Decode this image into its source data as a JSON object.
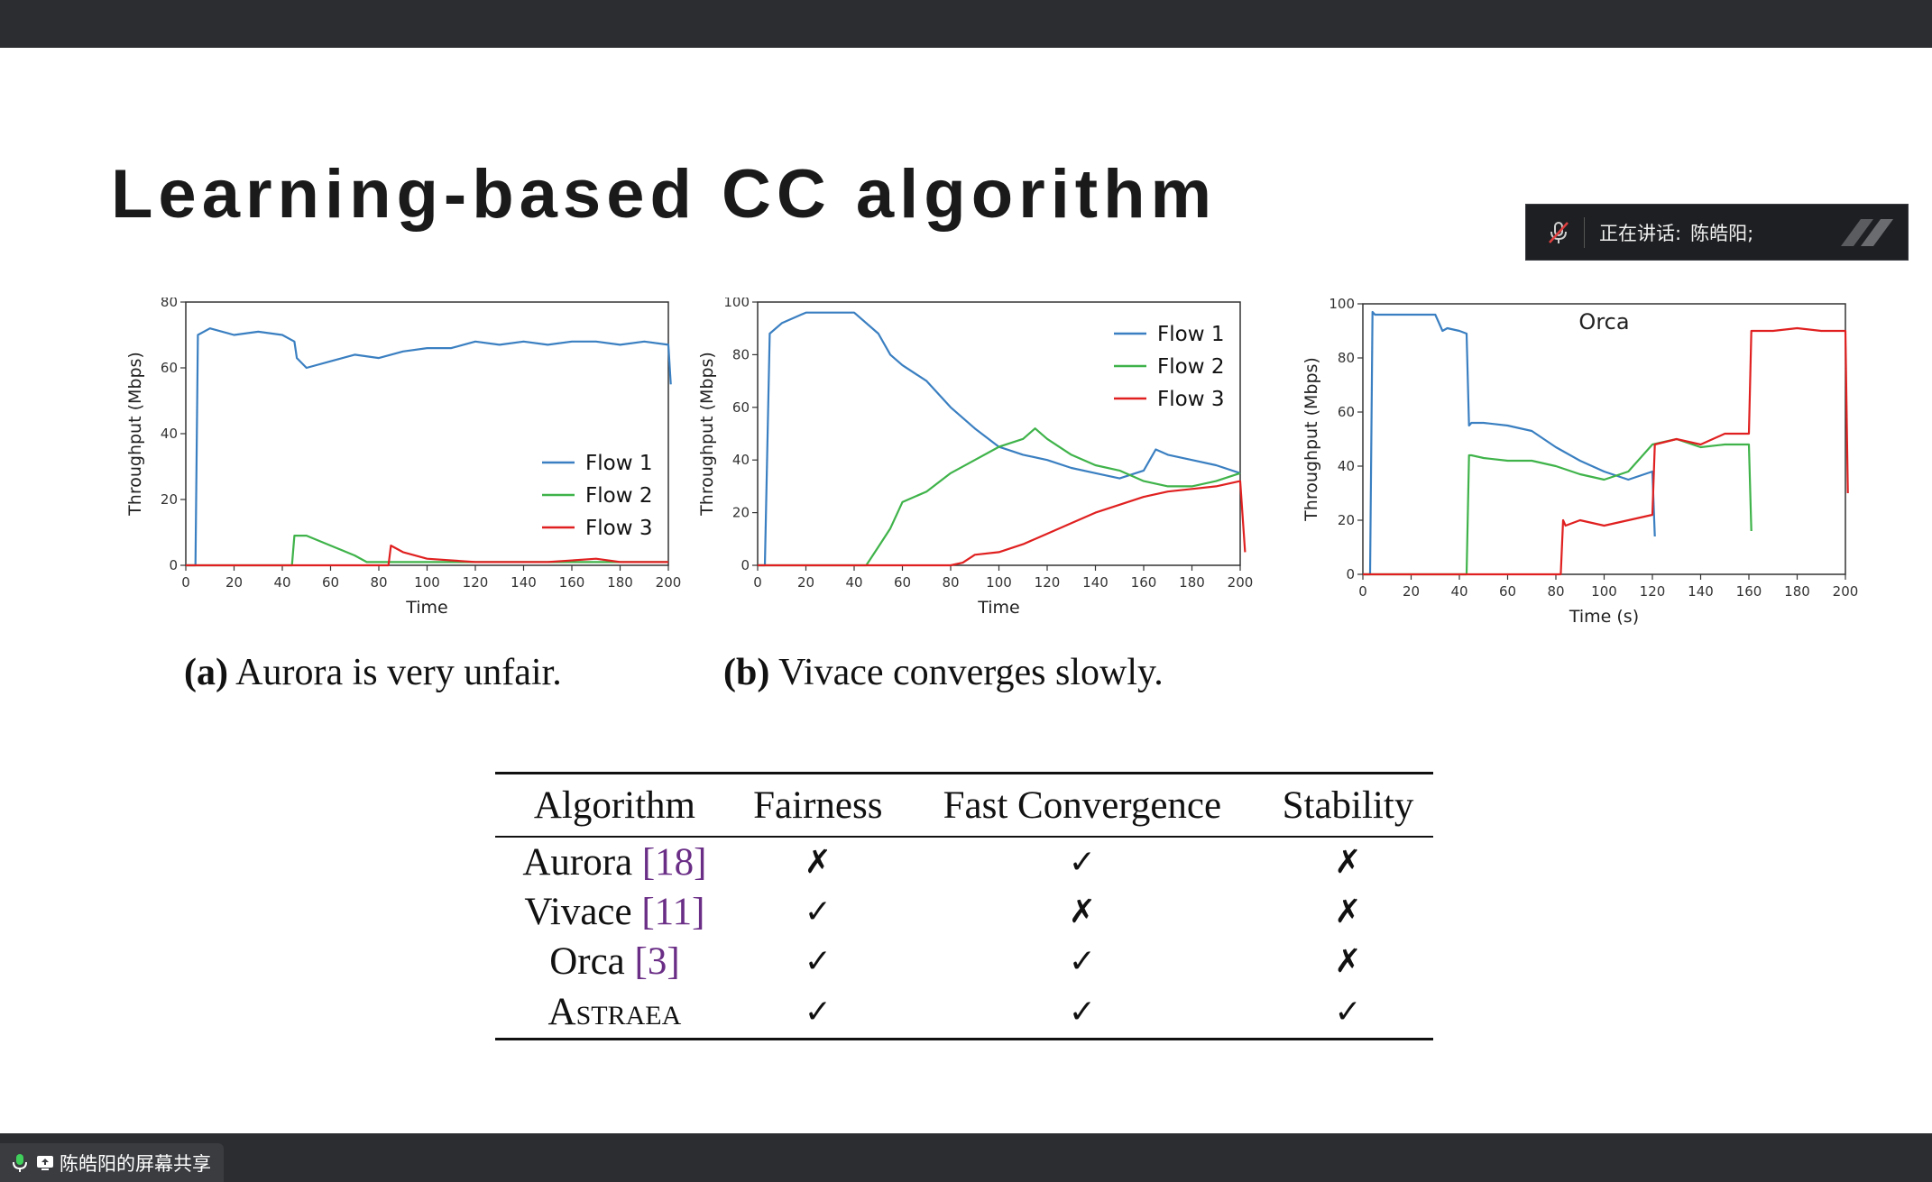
{
  "slide": {
    "title": "Learning-based CC algorithm"
  },
  "speaker_panel": {
    "label": "正在讲话:",
    "name": "陈皓阳;"
  },
  "share_bar": {
    "text": "陈皓阳的屏幕共享"
  },
  "captions": {
    "a_prefix": "(a)",
    "a_text": " Aurora is very unfair.",
    "b_prefix": "(b)",
    "b_text": " Vivace converges slowly."
  },
  "colors": {
    "flow1": "#3a7fc1",
    "flow2": "#3fb34a",
    "flow3": "#e02020"
  },
  "chart_data": [
    {
      "type": "line",
      "title": "",
      "xlabel": "Time",
      "ylabel": "Throughput (Mbps)",
      "xlim": [
        0,
        200
      ],
      "ylim": [
        0,
        80
      ],
      "xticks": [
        "0",
        "20",
        "40",
        "60",
        "80",
        "100",
        "120",
        "140",
        "160",
        "180",
        "200"
      ],
      "yticks": [
        "0",
        "20",
        "40",
        "60",
        "80"
      ],
      "legend": "lower-right",
      "series": [
        {
          "name": "Flow 1",
          "x": [
            0,
            4,
            5,
            10,
            20,
            30,
            40,
            45,
            46,
            50,
            60,
            70,
            80,
            90,
            100,
            110,
            120,
            130,
            140,
            150,
            160,
            170,
            180,
            190,
            200,
            201
          ],
          "y": [
            0,
            0,
            70,
            72,
            70,
            71,
            70,
            68,
            63,
            60,
            62,
            64,
            63,
            65,
            66,
            66,
            68,
            67,
            68,
            67,
            68,
            68,
            67,
            68,
            67,
            55
          ]
        },
        {
          "name": "Flow 2",
          "x": [
            0,
            44,
            45,
            50,
            60,
            70,
            75,
            80,
            100,
            150,
            200
          ],
          "y": [
            0,
            0,
            9,
            9,
            6,
            3,
            1,
            1,
            1,
            1,
            1
          ]
        },
        {
          "name": "Flow 3",
          "x": [
            0,
            84,
            85,
            90,
            100,
            120,
            150,
            170,
            180,
            200
          ],
          "y": [
            0,
            0,
            6,
            4,
            2,
            1,
            1,
            2,
            1,
            1
          ]
        }
      ]
    },
    {
      "type": "line",
      "title": "",
      "xlabel": "Time",
      "ylabel": "Throughput (Mbps)",
      "xlim": [
        0,
        200
      ],
      "ylim": [
        0,
        100
      ],
      "xticks": [
        "0",
        "20",
        "40",
        "60",
        "80",
        "100",
        "120",
        "140",
        "160",
        "180",
        "200"
      ],
      "yticks": [
        "0",
        "20",
        "40",
        "60",
        "80",
        "100"
      ],
      "legend": "top-right",
      "series": [
        {
          "name": "Flow 1",
          "x": [
            0,
            3,
            5,
            10,
            20,
            30,
            40,
            50,
            55,
            60,
            70,
            80,
            90,
            100,
            110,
            120,
            130,
            140,
            150,
            160,
            165,
            170,
            180,
            190,
            200
          ],
          "y": [
            0,
            0,
            88,
            92,
            96,
            96,
            96,
            88,
            80,
            76,
            70,
            60,
            52,
            45,
            42,
            40,
            37,
            35,
            33,
            36,
            44,
            42,
            40,
            38,
            35
          ]
        },
        {
          "name": "Flow 2",
          "x": [
            0,
            45,
            50,
            55,
            60,
            70,
            80,
            90,
            100,
            110,
            115,
            120,
            130,
            140,
            150,
            160,
            170,
            180,
            190,
            200
          ],
          "y": [
            0,
            0,
            7,
            14,
            24,
            28,
            35,
            40,
            45,
            48,
            52,
            48,
            42,
            38,
            36,
            32,
            30,
            30,
            32,
            35
          ]
        },
        {
          "name": "Flow 3",
          "x": [
            0,
            80,
            85,
            90,
            100,
            110,
            120,
            130,
            140,
            150,
            160,
            170,
            180,
            190,
            200,
            202
          ],
          "y": [
            0,
            0,
            1,
            4,
            5,
            8,
            12,
            16,
            20,
            23,
            26,
            28,
            29,
            30,
            32,
            5
          ]
        }
      ]
    },
    {
      "type": "line",
      "title": "Orca",
      "xlabel": "Time (s)",
      "ylabel": "Throughput (Mbps)",
      "xlim": [
        0,
        200
      ],
      "ylim": [
        0,
        100
      ],
      "xticks": [
        "0",
        "20",
        "40",
        "60",
        "80",
        "100",
        "120",
        "140",
        "160",
        "180",
        "200"
      ],
      "yticks": [
        "0",
        "20",
        "40",
        "60",
        "80",
        "100"
      ],
      "legend": "none",
      "series": [
        {
          "name": "",
          "x": [
            0,
            3,
            4,
            5,
            10,
            20,
            30,
            33,
            35,
            40,
            43,
            44,
            45,
            50,
            60,
            70,
            80,
            90,
            100,
            110,
            120,
            121
          ],
          "y": [
            0,
            0,
            97,
            96,
            96,
            96,
            96,
            90,
            91,
            90,
            89,
            55,
            56,
            56,
            55,
            53,
            47,
            42,
            38,
            35,
            38,
            14
          ]
        },
        {
          "name": "",
          "x": [
            0,
            43,
            44,
            45,
            50,
            60,
            70,
            80,
            90,
            100,
            110,
            120,
            130,
            140,
            150,
            160,
            161
          ],
          "y": [
            0,
            0,
            44,
            44,
            43,
            42,
            42,
            40,
            37,
            35,
            38,
            48,
            50,
            47,
            48,
            48,
            16
          ]
        },
        {
          "name": "",
          "x": [
            0,
            82,
            83,
            84,
            90,
            100,
            110,
            120,
            121,
            130,
            140,
            150,
            160,
            161,
            170,
            180,
            190,
            200,
            201
          ],
          "y": [
            0,
            0,
            20,
            18,
            20,
            18,
            20,
            22,
            48,
            50,
            48,
            52,
            52,
            90,
            90,
            91,
            90,
            90,
            30
          ]
        }
      ]
    }
  ],
  "table": {
    "headers": [
      "Algorithm",
      "Fairness",
      "Fast Convergence",
      "Stability"
    ],
    "rows": [
      {
        "name": "Aurora ",
        "ref": "[18]",
        "fairness": "✗",
        "convergence": "✓",
        "stability": "✗"
      },
      {
        "name": "Vivace ",
        "ref": "[11]",
        "fairness": "✓",
        "convergence": "✗",
        "stability": "✗"
      },
      {
        "name": "Orca ",
        "ref": "[3]",
        "fairness": "✓",
        "convergence": "✓",
        "stability": "✗"
      },
      {
        "name": "Astraea",
        "ref": "",
        "fairness": "✓",
        "convergence": "✓",
        "stability": "✓"
      }
    ]
  }
}
